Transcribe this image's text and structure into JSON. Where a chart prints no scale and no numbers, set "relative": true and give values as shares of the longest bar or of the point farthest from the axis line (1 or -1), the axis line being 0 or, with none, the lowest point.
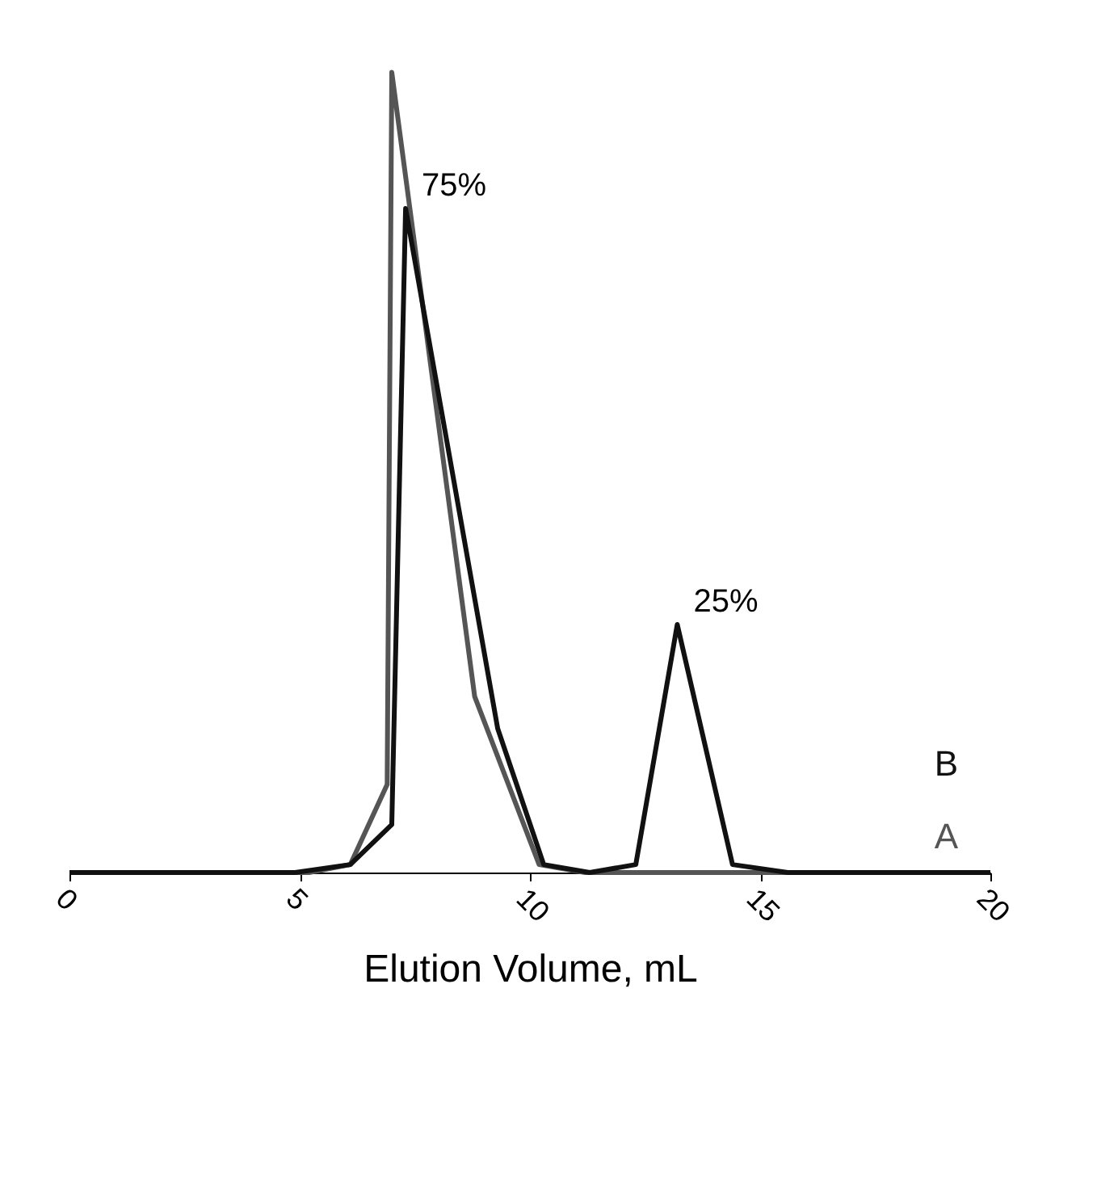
{
  "chart_data": {
    "type": "line",
    "xlabel": "Elution Volume, mL",
    "relative": true,
    "xlim": [
      0,
      20
    ],
    "xticks": [
      0,
      5,
      10,
      15,
      20
    ],
    "grid": false,
    "legend": false,
    "marker": "none",
    "line_style": "solid",
    "series": [
      {
        "name": "A",
        "color": "#555555",
        "x": [
          0,
          5.2,
          6.1,
          6.9,
          7.0,
          8.8,
          10.2,
          11.2,
          20
        ],
        "values": [
          0,
          0,
          0.01,
          0.11,
          1,
          0.22,
          0.01,
          0,
          0
        ]
      },
      {
        "name": "B",
        "color": "#111111",
        "x": [
          0,
          4.9,
          6.1,
          7.0,
          7.3,
          9.3,
          10.3,
          11.3,
          12.3,
          13.2,
          14.4,
          15.6,
          20
        ],
        "values": [
          0,
          0,
          0.01,
          0.06,
          0.83,
          0.18,
          0.01,
          0,
          0.01,
          0.31,
          0.01,
          0,
          0
        ]
      }
    ],
    "annotations": [
      {
        "text": "75%",
        "x": 7.3,
        "y": 0.83
      },
      {
        "text": "25%",
        "x": 13.2,
        "y": 0.31
      }
    ]
  }
}
